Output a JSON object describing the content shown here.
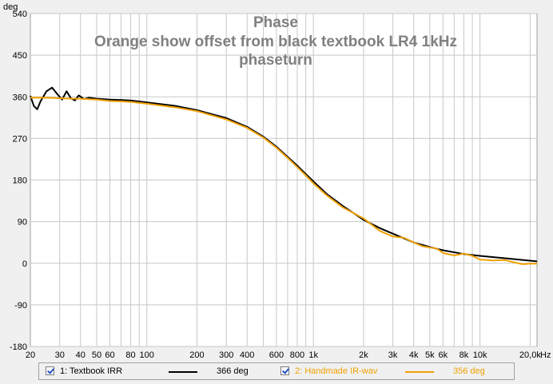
{
  "chart_data": {
    "type": "line",
    "title_lines": [
      "Phase",
      "Orange show offset from black textbook LR4 1kHz",
      "phaseturn"
    ],
    "ylabel": "deg",
    "xunit": "Hz",
    "xscale": "log",
    "xlim": [
      20,
      22000
    ],
    "ylim": [
      -180,
      540
    ],
    "yticks": [
      "540",
      "450",
      "360",
      "270",
      "180",
      "90",
      "0",
      "-90",
      "-180"
    ],
    "xticks": [
      {
        "v": 20,
        "label": "20"
      },
      {
        "v": 30,
        "label": "30"
      },
      {
        "v": 40,
        "label": "40"
      },
      {
        "v": 50,
        "label": "50"
      },
      {
        "v": 60,
        "label": "60"
      },
      {
        "v": 80,
        "label": "80"
      },
      {
        "v": 100,
        "label": "100"
      },
      {
        "v": 200,
        "label": "200"
      },
      {
        "v": 300,
        "label": "300"
      },
      {
        "v": 400,
        "label": "400"
      },
      {
        "v": 600,
        "label": "600"
      },
      {
        "v": 800,
        "label": "800"
      },
      {
        "v": 1000,
        "label": "1k"
      },
      {
        "v": 2000,
        "label": "2k"
      },
      {
        "v": 3000,
        "label": "3k"
      },
      {
        "v": 4000,
        "label": "4k"
      },
      {
        "v": 5000,
        "label": "5k"
      },
      {
        "v": 6000,
        "label": "6k"
      },
      {
        "v": 8000,
        "label": "8k"
      },
      {
        "v": 10000,
        "label": "10k"
      },
      {
        "v": 20000,
        "label": "20,0k"
      }
    ],
    "grid": true,
    "legend_position": "bottom",
    "series": [
      {
        "name": "1: Textbook IRR",
        "value_label": "366 deg",
        "color": "#000000",
        "points": [
          [
            20,
            362
          ],
          [
            21,
            340
          ],
          [
            22,
            333
          ],
          [
            23,
            350
          ],
          [
            25,
            372
          ],
          [
            27,
            380
          ],
          [
            29,
            366
          ],
          [
            31,
            354
          ],
          [
            33,
            372
          ],
          [
            35,
            357
          ],
          [
            37,
            352
          ],
          [
            39,
            363
          ],
          [
            42,
            355
          ],
          [
            45,
            358
          ],
          [
            50,
            356
          ],
          [
            60,
            354
          ],
          [
            70,
            353
          ],
          [
            80,
            352
          ],
          [
            100,
            348
          ],
          [
            150,
            340
          ],
          [
            200,
            331
          ],
          [
            300,
            314
          ],
          [
            400,
            295
          ],
          [
            500,
            274
          ],
          [
            600,
            252
          ],
          [
            700,
            230
          ],
          [
            800,
            211
          ],
          [
            900,
            193
          ],
          [
            1000,
            177
          ],
          [
            1200,
            150
          ],
          [
            1500,
            124
          ],
          [
            2000,
            94
          ],
          [
            2500,
            76
          ],
          [
            3000,
            64
          ],
          [
            4000,
            45
          ],
          [
            5000,
            35
          ],
          [
            6000,
            28
          ],
          [
            8000,
            20
          ],
          [
            10000,
            16
          ],
          [
            15000,
            10
          ],
          [
            22000,
            4
          ]
        ]
      },
      {
        "name": "2: Handmade IR-wav",
        "value_label": "356 deg",
        "color": "#f0a000",
        "points": [
          [
            20,
            358
          ],
          [
            25,
            358
          ],
          [
            30,
            357
          ],
          [
            35,
            356
          ],
          [
            40,
            356
          ],
          [
            50,
            354
          ],
          [
            60,
            351
          ],
          [
            70,
            350
          ],
          [
            80,
            349
          ],
          [
            100,
            345
          ],
          [
            150,
            337
          ],
          [
            200,
            329
          ],
          [
            300,
            311
          ],
          [
            400,
            293
          ],
          [
            500,
            272
          ],
          [
            600,
            250
          ],
          [
            700,
            228
          ],
          [
            800,
            208
          ],
          [
            900,
            190
          ],
          [
            1000,
            173
          ],
          [
            1200,
            147
          ],
          [
            1500,
            121
          ],
          [
            2000,
            97
          ],
          [
            2500,
            70
          ],
          [
            3000,
            58
          ],
          [
            3500,
            55
          ],
          [
            4000,
            45
          ],
          [
            4500,
            37
          ],
          [
            5000,
            34
          ],
          [
            5500,
            32
          ],
          [
            6000,
            22
          ],
          [
            7000,
            17
          ],
          [
            8000,
            21
          ],
          [
            9000,
            16
          ],
          [
            10000,
            8
          ],
          [
            12000,
            6
          ],
          [
            14000,
            7
          ],
          [
            16000,
            2
          ],
          [
            18000,
            -2
          ],
          [
            20000,
            -1
          ],
          [
            22000,
            -1
          ]
        ]
      }
    ]
  }
}
